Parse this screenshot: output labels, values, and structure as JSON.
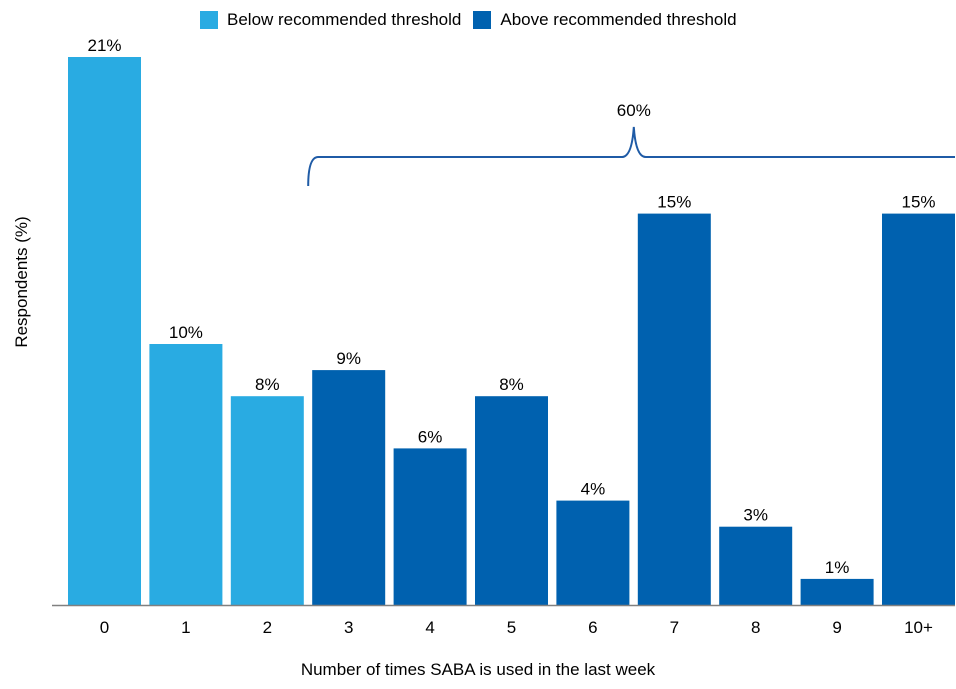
{
  "chart_data": {
    "type": "bar",
    "title": "",
    "xlabel": "Number of times SABA is used in the last week",
    "ylabel": "Respondents (%)",
    "categories": [
      "0",
      "1",
      "2",
      "3",
      "4",
      "5",
      "6",
      "7",
      "8",
      "9",
      "10+"
    ],
    "values": [
      21,
      10,
      8,
      9,
      6,
      8,
      4,
      15,
      3,
      1,
      15
    ],
    "data_labels": [
      "21%",
      "10%",
      "8%",
      "9%",
      "6%",
      "8%",
      "4%",
      "15%",
      "3%",
      "1%",
      "15%"
    ],
    "group": [
      "below",
      "below",
      "below",
      "above",
      "above",
      "above",
      "above",
      "above",
      "above",
      "above",
      "above"
    ],
    "ylim": [
      0,
      21
    ],
    "grid": false,
    "legend_position": "top",
    "legend": [
      {
        "key": "below",
        "label": "Below recommended threshold",
        "color": "#29ABE2"
      },
      {
        "key": "above",
        "label": "Above recommended threshold",
        "color": "#0061AF"
      }
    ],
    "annotation": {
      "label": "60%",
      "from_category": "3",
      "to_category": "10+",
      "color": "#1F5BA6"
    }
  }
}
